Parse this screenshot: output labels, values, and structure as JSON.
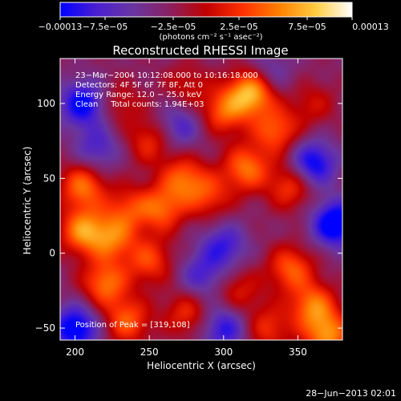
{
  "colorbar": {
    "ticks": [
      "−0.00013",
      "−7.5e−05",
      "−2.5e−05",
      "2.5e−05",
      "7.5e−05",
      "0.00013"
    ],
    "units": "(photons cm⁻² s⁻¹ asec⁻²)",
    "range": [
      -0.00013,
      0.00013
    ],
    "colors": [
      "#0000ff",
      "#4a1fd0",
      "#6a35a0",
      "#8a2060",
      "#c00000",
      "#ff3000",
      "#ff8000",
      "#ffcc40",
      "#ffffff"
    ]
  },
  "chart_data": {
    "type": "heatmap",
    "title": "Reconstructed RHESSI Image",
    "xlabel": "Heliocentric X (arcsec)",
    "ylabel": "Heliocentric Y (arcsec)",
    "xlim": [
      190,
      380
    ],
    "ylim": [
      -58,
      130
    ],
    "x_ticks": [
      200,
      250,
      300,
      350
    ],
    "y_ticks": [
      -50,
      0,
      50,
      100
    ],
    "annotations": [
      "23−Mar−2004 10:12:08.000 to 10:16:18.000",
      "Detectors: 4F 5F 6F 7F 8F, Att 0",
      "Energy Range: 12.0 − 25.0 keV",
      "Clean     Total counts: 1.94E+03"
    ],
    "peak_label": "Position of Peak = [319,108]",
    "peak": [
      319,
      108
    ],
    "sources": [
      {
        "x": 319,
        "y": 108,
        "flux": 0.00013
      },
      {
        "x": 300,
        "y": 95,
        "flux": 8e-05
      },
      {
        "x": 335,
        "y": 82,
        "flux": 8e-05
      },
      {
        "x": 315,
        "y": 57,
        "flux": 9e-05
      },
      {
        "x": 345,
        "y": 45,
        "flux": 7e-05
      },
      {
        "x": 250,
        "y": 75,
        "flux": 6e-05
      },
      {
        "x": 273,
        "y": 50,
        "flux": 8e-05
      },
      {
        "x": 258,
        "y": 30,
        "flux": 8e-05
      },
      {
        "x": 290,
        "y": 38,
        "flux": 6e-05
      },
      {
        "x": 205,
        "y": 45,
        "flux": 9e-05
      },
      {
        "x": 235,
        "y": 30,
        "flux": 6e-05
      },
      {
        "x": 205,
        "y": 15,
        "flux": 0.0001
      },
      {
        "x": 225,
        "y": 10,
        "flux": 8e-05
      },
      {
        "x": 250,
        "y": -5,
        "flux": 7e-05
      },
      {
        "x": 220,
        "y": -20,
        "flux": 9e-05
      },
      {
        "x": 235,
        "y": -45,
        "flux": 8e-05
      },
      {
        "x": 275,
        "y": -40,
        "flux": 6e-05
      },
      {
        "x": 310,
        "y": -25,
        "flux": 5e-05
      },
      {
        "x": 345,
        "y": -10,
        "flux": 8e-05
      },
      {
        "x": 360,
        "y": -35,
        "flux": 9e-05
      },
      {
        "x": 370,
        "y": -55,
        "flux": 0.0001
      },
      {
        "x": 330,
        "y": -50,
        "flux": 6e-05
      },
      {
        "x": 230,
        "y": 100,
        "flux": 4e-05
      },
      {
        "x": 275,
        "y": 112,
        "flux": 4e-05
      },
      {
        "x": 360,
        "y": 100,
        "flux": 4e-05
      },
      {
        "x": 215,
        "y": 70,
        "flux": -6e-05
      },
      {
        "x": 205,
        "y": 100,
        "flux": -0.0001
      },
      {
        "x": 270,
        "y": 85,
        "flux": -6e-05
      },
      {
        "x": 360,
        "y": 60,
        "flux": -0.0001
      },
      {
        "x": 375,
        "y": 20,
        "flux": -0.00012
      },
      {
        "x": 300,
        "y": 5,
        "flux": -7e-05
      },
      {
        "x": 285,
        "y": -15,
        "flux": -6e-05
      },
      {
        "x": 200,
        "y": -50,
        "flux": -0.00011
      },
      {
        "x": 300,
        "y": -50,
        "flux": -8e-05
      },
      {
        "x": 330,
        "y": 120,
        "flux": -5e-05
      }
    ]
  },
  "footer": {
    "date": "28−Jun−2013 02:01"
  }
}
